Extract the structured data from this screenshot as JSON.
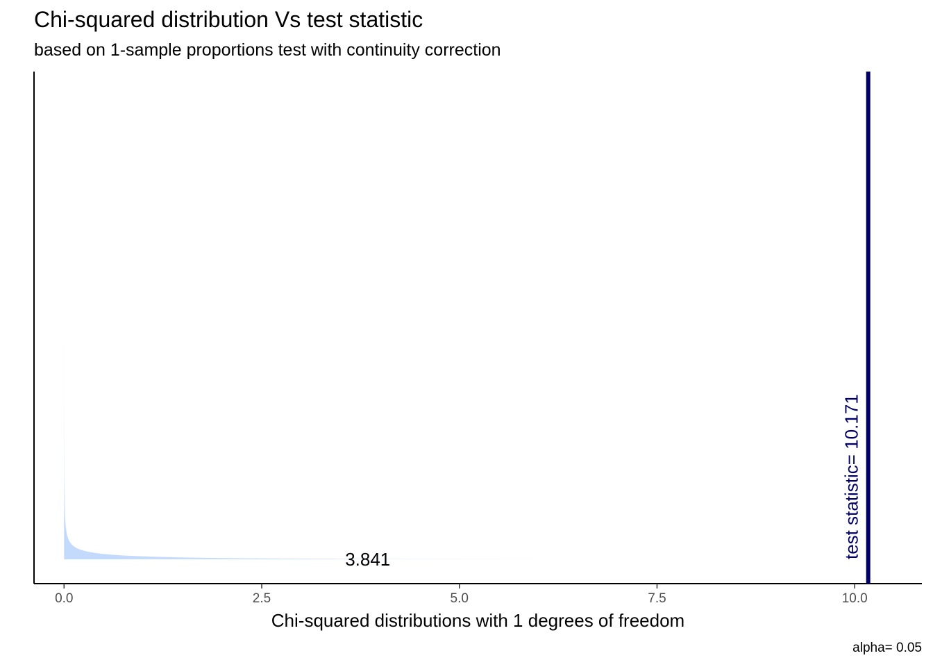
{
  "chart_data": {
    "type": "area",
    "title": "Chi-squared distribution Vs test statistic",
    "subtitle": "based on 1-sample proportions test with continuity correction",
    "xlabel": "Chi-squared distributions with 1 degrees of freedom",
    "ylabel": "",
    "caption": "alpha= 0.05",
    "df": 1,
    "alpha": 0.05,
    "critical_value": 3.841,
    "critical_label": "3.841",
    "test_statistic": 10.171,
    "test_statistic_label": "test statistic= 10.171",
    "xlim": [
      -0.38,
      10.85
    ],
    "x_ticks": [
      0,
      2.5,
      5,
      7.5,
      10
    ],
    "x_tick_labels": [
      "0.0",
      "2.5",
      "5.0",
      "7.5",
      "10.0"
    ],
    "density_range": [
      0.0001,
      7.6
    ],
    "grid": false,
    "legend": "none",
    "colors": {
      "fill": "#c4dafc",
      "test_statistic_line": "#000066",
      "axis": "#000000"
    }
  }
}
